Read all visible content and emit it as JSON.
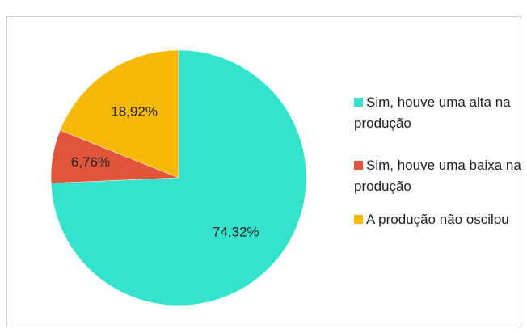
{
  "chart_data": {
    "type": "pie",
    "categories": [
      "Sim, houve uma alta na produção",
      "Sim, houve uma baixa na produção",
      "A produção não oscilou"
    ],
    "values": [
      74.32,
      6.76,
      18.92
    ],
    "value_labels": [
      "74,32%",
      "6,76%",
      "18,92%"
    ],
    "colors": [
      "#33e3cb",
      "#e2553d",
      "#f6b90a"
    ],
    "legend": "right"
  }
}
